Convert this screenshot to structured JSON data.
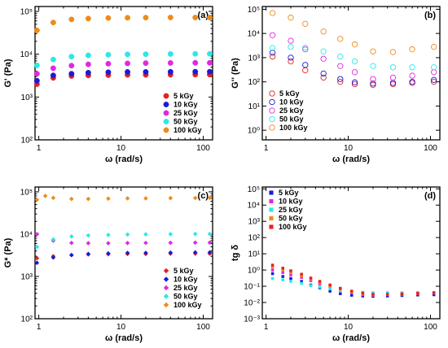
{
  "chart_data": [
    {
      "id": "a",
      "type": "scatter",
      "marker": "circle-filled",
      "panel_label": "(a)",
      "xlabel": "ω (rad/s)",
      "ylabel": "G' (Pa)",
      "xscale": "log",
      "yscale": "log",
      "xlim": [
        0.9,
        130
      ],
      "ylim": [
        100,
        130000
      ],
      "xticks": [
        1,
        10,
        100
      ],
      "xtick_labels": [
        "1",
        "10",
        "100"
      ],
      "yticks": [
        100,
        1000,
        10000,
        100000
      ],
      "ytick_labels": [
        "10²",
        "10³",
        "10⁴",
        "10⁵"
      ],
      "legend_position": "bottom-right",
      "series": [
        {
          "name": "5 kGy",
          "color": "#e8201e",
          "x": [
            0.95,
            1.5,
            2.5,
            4,
            7,
            12,
            20,
            40,
            80,
            120
          ],
          "y": [
            2000,
            2800,
            3100,
            3200,
            3250,
            3300,
            3300,
            3320,
            3350,
            3350
          ]
        },
        {
          "name": "10 kGy",
          "color": "#1a1ad8",
          "x": [
            0.95,
            1.5,
            2.5,
            4,
            7,
            12,
            20,
            40,
            80,
            120
          ],
          "y": [
            2400,
            3200,
            3500,
            3700,
            3800,
            3850,
            3850,
            3880,
            3900,
            3900
          ]
        },
        {
          "name": "25 kGy",
          "color": "#e029e0",
          "x": [
            0.95,
            1.5,
            2.5,
            4,
            7,
            12,
            20,
            40,
            80,
            120
          ],
          "y": [
            3500,
            4700,
            5400,
            5800,
            6000,
            6100,
            6200,
            6250,
            6300,
            6300
          ]
        },
        {
          "name": "50 kGy",
          "color": "#2ce8e8",
          "x": [
            0.95,
            1.5,
            2.5,
            4,
            7,
            12,
            20,
            40,
            80,
            120
          ],
          "y": [
            5500,
            7500,
            8800,
            9400,
            9700,
            9900,
            10000,
            10100,
            10200,
            10200
          ]
        },
        {
          "name": "100 kGy",
          "color": "#f08a1a",
          "x": [
            0.95,
            1.5,
            2.5,
            4,
            7,
            12,
            20,
            40,
            80,
            120
          ],
          "y": [
            36000,
            55000,
            65000,
            68000,
            70000,
            71000,
            71500,
            72000,
            72000,
            72000
          ]
        }
      ]
    },
    {
      "id": "b",
      "type": "scatter",
      "marker": "circle-open",
      "panel_label": "(b)",
      "xlabel": "ω (rad/s)",
      "ylabel": "G'' (Pa)",
      "xscale": "log",
      "yscale": "log",
      "xlim": [
        0.9,
        130
      ],
      "ylim": [
        0.4,
        130000
      ],
      "xticks": [
        1,
        10,
        100
      ],
      "xtick_labels": [
        "1",
        "10",
        "100"
      ],
      "yticks": [
        1,
        10,
        100,
        1000,
        10000,
        100000
      ],
      "ytick_labels": [
        "10⁰",
        "10¹",
        "10²",
        "10³",
        "10⁴",
        "10⁵"
      ],
      "legend_position": "bottom-left",
      "series": [
        {
          "name": "5 kGy",
          "color": "#e8201e",
          "x": [
            1.2,
            2,
            3,
            5,
            8,
            12,
            20,
            35,
            60,
            110
          ],
          "y": [
            1100,
            700,
            300,
            150,
            100,
            80,
            75,
            80,
            90,
            100
          ]
        },
        {
          "name": "10 kGy",
          "color": "#1a1ad8",
          "x": [
            1.2,
            2,
            3,
            5,
            8,
            12,
            20,
            35,
            60,
            110
          ],
          "y": [
            1600,
            1000,
            500,
            220,
            130,
            95,
            85,
            90,
            100,
            120
          ]
        },
        {
          "name": "25 kGy",
          "color": "#e029e0",
          "x": [
            1.2,
            2,
            3,
            5,
            8,
            12,
            20,
            35,
            60,
            110
          ],
          "y": [
            8500,
            5000,
            2200,
            900,
            450,
            250,
            130,
            150,
            180,
            250
          ]
        },
        {
          "name": "50 kGy",
          "color": "#2ce8e8",
          "x": [
            1.2,
            2,
            3,
            5,
            8,
            12,
            20,
            35,
            60,
            110
          ],
          "y": [
            2500,
            2800,
            2600,
            1800,
            1100,
            700,
            450,
            400,
            400,
            400
          ]
        },
        {
          "name": "100 kGy",
          "color": "#f08a1a",
          "x": [
            1.2,
            2,
            3,
            5,
            8,
            12,
            20,
            35,
            60,
            110
          ],
          "y": [
            70000,
            45000,
            25000,
            12000,
            6000,
            3500,
            1800,
            1700,
            2200,
            2800
          ]
        }
      ]
    },
    {
      "id": "c",
      "type": "scatter",
      "marker": "diamond-filled",
      "panel_label": "(c)",
      "xlabel": "ω (rad/s)",
      "ylabel": "G* (Pa)",
      "xscale": "log",
      "yscale": "log",
      "xlim": [
        0.9,
        130
      ],
      "ylim": [
        100,
        130000
      ],
      "xticks": [
        1,
        10,
        100
      ],
      "xtick_labels": [
        "1",
        "10",
        "100"
      ],
      "yticks": [
        100,
        1000,
        10000,
        100000
      ],
      "ytick_labels": [
        "10²",
        "10³",
        "10⁴",
        "10⁵"
      ],
      "legend_position": "bottom-right",
      "series": [
        {
          "name": "5 kGy",
          "color": "#e8201e",
          "x": [
            0.95,
            1.5,
            2.5,
            4,
            7,
            12,
            20,
            40,
            80,
            120
          ],
          "y": [
            2700,
            3000,
            3200,
            3300,
            3350,
            3400,
            3400,
            3450,
            3450,
            3450
          ]
        },
        {
          "name": "10 kGy",
          "color": "#1a1ad8",
          "x": [
            0.95,
            1.5,
            2.5,
            4,
            7,
            12,
            20,
            40,
            80,
            120
          ],
          "y": [
            2100,
            2800,
            3200,
            3400,
            3500,
            3600,
            3600,
            3650,
            3700,
            3700
          ]
        },
        {
          "name": "25 kGy",
          "color": "#e029e0",
          "x": [
            0.95,
            1.5,
            2.5,
            4,
            7,
            12,
            20,
            40,
            80,
            120
          ],
          "y": [
            10000,
            7000,
            6200,
            6100,
            6100,
            6150,
            6200,
            6250,
            6300,
            6300
          ]
        },
        {
          "name": "50 kGy",
          "color": "#2ce8e8",
          "x": [
            0.95,
            1.5,
            2.5,
            4,
            7,
            12,
            20,
            40,
            80,
            120
          ],
          "y": [
            5000,
            7500,
            8800,
            9300,
            9600,
            9800,
            9900,
            10000,
            10100,
            10100
          ]
        },
        {
          "name": "100 kGy",
          "color": "#f08a1a",
          "x": [
            0.95,
            1.2,
            1.5,
            2.5,
            4,
            7,
            12,
            20,
            40,
            80,
            120
          ],
          "y": [
            65000,
            80000,
            72000,
            68000,
            68000,
            69000,
            70000,
            70000,
            71000,
            71500,
            72000
          ]
        }
      ]
    },
    {
      "id": "d",
      "type": "scatter",
      "marker": "square-filled",
      "panel_label": "(d)",
      "xlabel": "ω (rad/s)",
      "ylabel": "tg δ",
      "xscale": "log",
      "yscale": "log",
      "xlim": [
        0.9,
        130
      ],
      "ylim": [
        0.001,
        130000
      ],
      "xticks": [
        1,
        10,
        100
      ],
      "xtick_labels": [
        "1",
        "10",
        "100"
      ],
      "yticks": [
        0.001,
        0.01,
        0.1,
        1,
        10,
        100,
        1000,
        10000,
        100000
      ],
      "ytick_labels": [
        "10⁻³",
        "10⁻²",
        "10⁻¹",
        "10⁰",
        "10¹",
        "10²",
        "10³",
        "10⁴",
        "10⁵"
      ],
      "legend_position": "top-left",
      "series": [
        {
          "name": "5 kGy",
          "color": "#1a1ad8",
          "x": [
            1.2,
            1.6,
            2,
            2.7,
            3.5,
            4.5,
            6,
            8,
            11,
            15,
            20,
            30,
            45,
            70,
            110
          ],
          "y": [
            0.6,
            0.4,
            0.3,
            0.2,
            0.12,
            0.08,
            0.05,
            0.035,
            0.028,
            0.025,
            0.024,
            0.025,
            0.027,
            0.029,
            0.03
          ]
        },
        {
          "name": "10 kGy",
          "color": "#e029e0",
          "x": [
            1.2,
            1.6,
            2,
            2.7,
            3.5,
            4.5,
            6,
            8,
            11,
            15,
            20,
            30,
            45,
            70,
            110
          ],
          "y": [
            1.0,
            0.7,
            0.5,
            0.35,
            0.22,
            0.14,
            0.09,
            0.06,
            0.04,
            0.03,
            0.028,
            0.03,
            0.032,
            0.035,
            0.038
          ]
        },
        {
          "name": "25 kGy",
          "color": "#2ce8e8",
          "x": [
            1.2,
            1.6,
            2,
            2.7,
            3.5,
            4.5,
            6,
            8,
            11,
            15,
            20,
            30,
            45,
            70,
            110
          ],
          "y": [
            0.3,
            0.25,
            0.2,
            0.15,
            0.11,
            0.09,
            0.07,
            0.055,
            0.045,
            0.042,
            0.04,
            0.04,
            0.04,
            0.04,
            0.04
          ]
        },
        {
          "name": "50 kGy",
          "color": "#f08a1a",
          "x": [
            1.2,
            1.6,
            2,
            2.7,
            3.5,
            4.5,
            6,
            8,
            11,
            15,
            20,
            30,
            45,
            70,
            110
          ],
          "y": [
            1.5,
            1.0,
            0.7,
            0.45,
            0.28,
            0.17,
            0.1,
            0.065,
            0.045,
            0.035,
            0.03,
            0.031,
            0.033,
            0.036,
            0.04
          ]
        },
        {
          "name": "100 kGy",
          "color": "#e8201e",
          "x": [
            1.2,
            1.6,
            2,
            2.7,
            3.5,
            4.5,
            6,
            8,
            11,
            15,
            20,
            30,
            45,
            70,
            110
          ],
          "y": [
            2.0,
            1.3,
            0.9,
            0.55,
            0.32,
            0.2,
            0.12,
            0.075,
            0.05,
            0.038,
            0.032,
            0.032,
            0.034,
            0.037,
            0.04
          ]
        }
      ]
    }
  ]
}
